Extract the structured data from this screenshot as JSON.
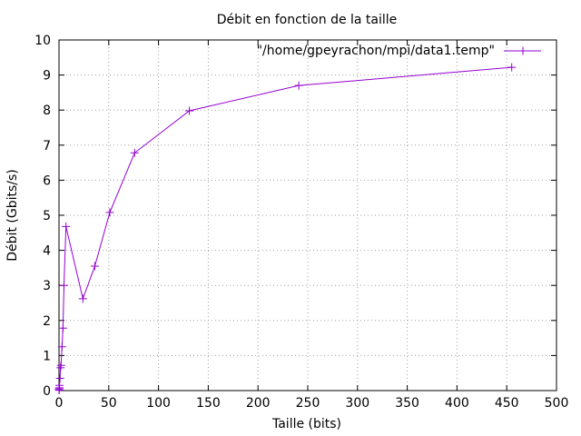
{
  "chart_data": {
    "type": "line",
    "title": "Débit en fonction de la taille",
    "xlabel": "Taille (bits)",
    "ylabel": "Débit (Gbits/s)",
    "xlim": [
      0,
      500
    ],
    "ylim": [
      0,
      10
    ],
    "xticks": [
      "0",
      "50",
      "100",
      "150",
      "200",
      "250",
      "300",
      "350",
      "400",
      "450",
      "500"
    ],
    "yticks": [
      "0",
      "1",
      "2",
      "3",
      "4",
      "5",
      "6",
      "7",
      "8",
      "9",
      "10"
    ],
    "grid": true,
    "legend_position": "top-right",
    "series": [
      {
        "name": "\"/home/gpeyrachon/mpi/data1.temp\"",
        "color": "#9400d3",
        "marker": "plus",
        "x": [
          0.05,
          0.1,
          0.2,
          0.3,
          0.5,
          1,
          1.5,
          2,
          3,
          4,
          5,
          7,
          24,
          36,
          51,
          76,
          131,
          241,
          455
        ],
        "y": [
          0.01,
          0.02,
          0.05,
          0.08,
          0.15,
          0.35,
          0.65,
          0.72,
          1.25,
          1.78,
          3.0,
          4.68,
          2.62,
          3.55,
          5.08,
          6.78,
          7.98,
          8.7,
          9.22
        ]
      }
    ]
  }
}
